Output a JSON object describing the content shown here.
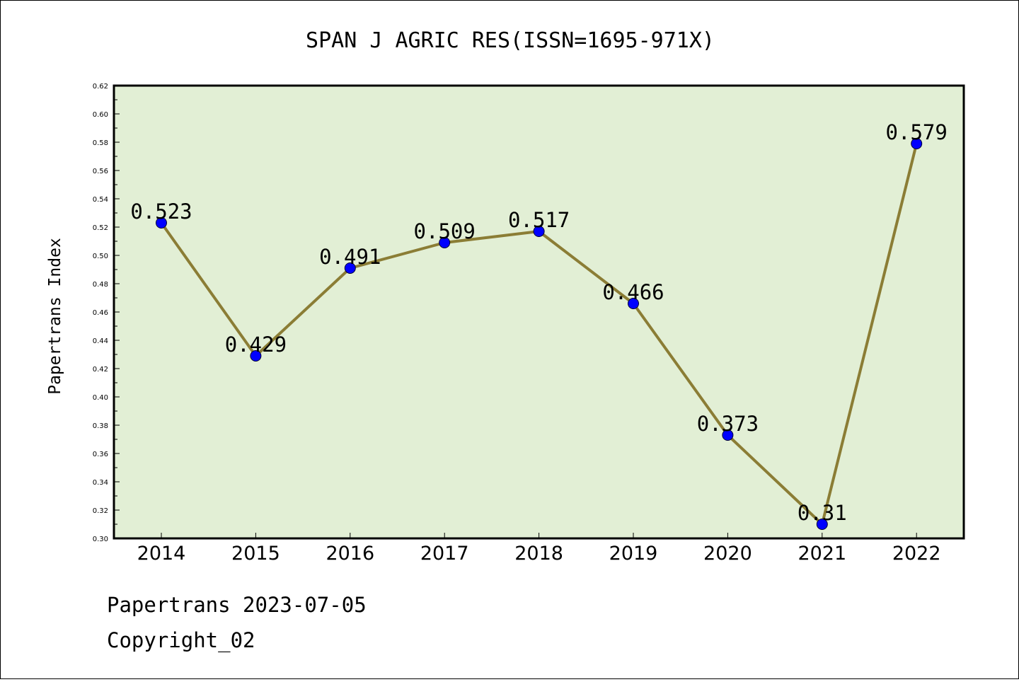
{
  "chart_data": {
    "type": "line",
    "title": "SPAN J AGRIC RES(ISSN=1695-971X)",
    "xlabel": "",
    "ylabel": "Papertrans Index",
    "categories": [
      "2014",
      "2015",
      "2016",
      "2017",
      "2018",
      "2019",
      "2020",
      "2021",
      "2022"
    ],
    "values": [
      0.523,
      0.429,
      0.491,
      0.509,
      0.517,
      0.466,
      0.373,
      0.31,
      0.579
    ],
    "value_labels": [
      "0.523",
      "0.429",
      "0.491",
      "0.509",
      "0.517",
      "0.466",
      "0.373",
      "0.31",
      "0.579"
    ],
    "ylim": [
      0.3,
      0.62
    ],
    "ytick_labels": [
      "0.30",
      "0.32",
      "0.34",
      "0.36",
      "0.38",
      "0.40",
      "0.42",
      "0.44",
      "0.46",
      "0.48",
      "0.50",
      "0.52",
      "0.54",
      "0.56",
      "0.58",
      "0.60",
      "0.62"
    ],
    "grid": false,
    "legend": "none",
    "colors": {
      "plot_background": "#e2efd5",
      "line": "#8b7d35",
      "marker": "#0000ff"
    }
  },
  "footer": {
    "line1": "Papertrans 2023-07-05",
    "line2": "Copyright_02"
  }
}
